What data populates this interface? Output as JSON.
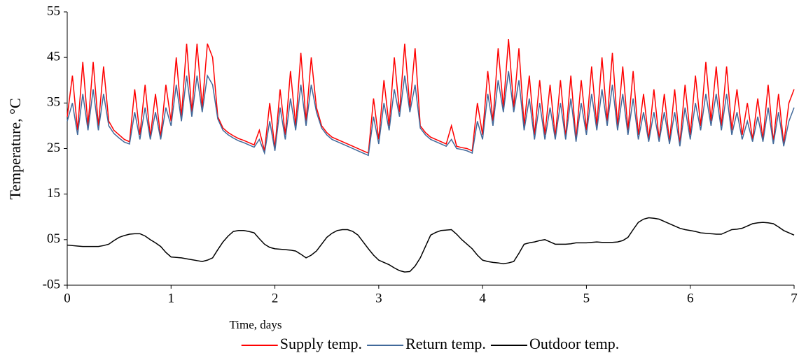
{
  "chart_data": {
    "type": "line",
    "xlabel": "Time, days",
    "ylabel": "Temperature, °C",
    "xlim": [
      0,
      7
    ],
    "xticks": [
      0,
      1,
      2,
      3,
      4,
      5,
      6,
      7
    ],
    "ylim": [
      -5,
      55
    ],
    "yticks": [
      {
        "value": -5,
        "label": "-05"
      },
      {
        "value": 5,
        "label": "05"
      },
      15,
      25,
      35,
      45,
      55
    ],
    "legend": "bottom",
    "x": [
      0,
      0.05,
      0.1,
      0.15,
      0.2,
      0.25,
      0.3,
      0.35,
      0.4,
      0.45,
      0.5,
      0.55,
      0.6,
      0.65,
      0.7,
      0.75,
      0.8,
      0.85,
      0.9,
      0.95,
      1,
      1.05,
      1.1,
      1.15,
      1.2,
      1.25,
      1.3,
      1.35,
      1.4,
      1.45,
      1.5,
      1.55,
      1.6,
      1.65,
      1.7,
      1.75,
      1.8,
      1.85,
      1.9,
      1.95,
      2,
      2.05,
      2.1,
      2.15,
      2.2,
      2.25,
      2.3,
      2.35,
      2.4,
      2.45,
      2.5,
      2.55,
      2.6,
      2.65,
      2.7,
      2.75,
      2.8,
      2.85,
      2.9,
      2.95,
      3,
      3.05,
      3.1,
      3.15,
      3.2,
      3.25,
      3.3,
      3.35,
      3.4,
      3.45,
      3.5,
      3.55,
      3.6,
      3.65,
      3.7,
      3.75,
      3.8,
      3.85,
      3.9,
      3.95,
      4,
      4.05,
      4.1,
      4.15,
      4.2,
      4.25,
      4.3,
      4.35,
      4.4,
      4.45,
      4.5,
      4.55,
      4.6,
      4.65,
      4.7,
      4.75,
      4.8,
      4.85,
      4.9,
      4.95,
      5,
      5.05,
      5.1,
      5.15,
      5.2,
      5.25,
      5.3,
      5.35,
      5.4,
      5.45,
      5.5,
      5.55,
      5.6,
      5.65,
      5.7,
      5.75,
      5.8,
      5.85,
      5.9,
      5.95,
      6,
      6.05,
      6.1,
      6.15,
      6.2,
      6.25,
      6.3,
      6.35,
      6.4,
      6.45,
      6.5,
      6.55,
      6.6,
      6.65,
      6.7,
      6.75,
      6.8,
      6.85,
      6.9,
      6.95,
      7
    ],
    "series": [
      {
        "name": "Supply temp.",
        "color": "#ff0000",
        "values": [
          32,
          41,
          29,
          44,
          30,
          44,
          30,
          43,
          31,
          29,
          28,
          27,
          26.5,
          38,
          28,
          39,
          27.5,
          37,
          27.5,
          39,
          31,
          45,
          32,
          48,
          33,
          48,
          34,
          48,
          45,
          32,
          29.5,
          28.5,
          27.8,
          27.2,
          26.8,
          26.3,
          25.8,
          29,
          24.5,
          35,
          25,
          38,
          28,
          42,
          30,
          46,
          31,
          45,
          34,
          30,
          28.5,
          27.5,
          27,
          26.5,
          26,
          25.5,
          25,
          24.5,
          24,
          36,
          27,
          40,
          30,
          45,
          33,
          48,
          34,
          47,
          30,
          28.5,
          27.5,
          27,
          26.5,
          26,
          30,
          25.5,
          25.2,
          25,
          24.5,
          35,
          28,
          42,
          31,
          47,
          34,
          49,
          34,
          47,
          30,
          41,
          28,
          40,
          28,
          39,
          27.5,
          40,
          27.5,
          41,
          27,
          40,
          29,
          43,
          30,
          45,
          31,
          46,
          30,
          43,
          29,
          42,
          28,
          37,
          27,
          38,
          27,
          37,
          26.5,
          38,
          26,
          39,
          28,
          41,
          30,
          44,
          31,
          43,
          30,
          43,
          29,
          38,
          28,
          35,
          27,
          36,
          27,
          39,
          26.5,
          37,
          26,
          35,
          38
        ]
      },
      {
        "name": "Return temp.",
        "color": "#41699a",
        "values": [
          31,
          35,
          28,
          37,
          29,
          38,
          29,
          37,
          30,
          28.3,
          27.3,
          26.4,
          26,
          33,
          27,
          34,
          27,
          33,
          27,
          34,
          30,
          39,
          31,
          41,
          32,
          41,
          33,
          41,
          39,
          31.5,
          29,
          28,
          27.3,
          26.7,
          26.3,
          25.8,
          25.3,
          27,
          24,
          31,
          24.5,
          34,
          27,
          36,
          29,
          39,
          30,
          39,
          33,
          29.5,
          28,
          27,
          26.5,
          26,
          25.5,
          25,
          24.5,
          24,
          23.5,
          32,
          26,
          35,
          29,
          38,
          32,
          41,
          33,
          39,
          29.5,
          28,
          27,
          26.5,
          26,
          25.5,
          27,
          25,
          24.8,
          24.5,
          24,
          31,
          27,
          37,
          30,
          40,
          33,
          42,
          33,
          40,
          29,
          36,
          27,
          35,
          27,
          34,
          27,
          35,
          27,
          36,
          26.5,
          35,
          28,
          37,
          29,
          38,
          30,
          39,
          29,
          37,
          28,
          36,
          27,
          33,
          26.5,
          33,
          26.5,
          33,
          26,
          33,
          25.5,
          34,
          27,
          35,
          29,
          37,
          30,
          37,
          29,
          37,
          28,
          33,
          27,
          31,
          26.5,
          32,
          26.5,
          34,
          26,
          33,
          25.5,
          31,
          34
        ]
      },
      {
        "name": "Outdoor temp.",
        "color": "#000000",
        "values": [
          3.8,
          3.7,
          3.6,
          3.5,
          3.5,
          3.5,
          3.5,
          3.7,
          4,
          4.8,
          5.5,
          5.9,
          6.2,
          6.3,
          6.3,
          5.8,
          5,
          4.3,
          3.5,
          2.2,
          1.2,
          1.1,
          1,
          0.8,
          0.6,
          0.4,
          0.2,
          0.5,
          1,
          2.8,
          4.5,
          5.8,
          6.8,
          7,
          7,
          6.8,
          6.5,
          5.2,
          4,
          3.3,
          3,
          2.9,
          2.8,
          2.7,
          2.5,
          1.8,
          1,
          1.6,
          2.5,
          4,
          5.5,
          6.4,
          7,
          7.2,
          7.2,
          6.8,
          6,
          4.5,
          3,
          1.6,
          0.5,
          0,
          -0.5,
          -1.2,
          -1.8,
          -2.1,
          -2,
          -0.8,
          1,
          3.5,
          6,
          6.6,
          7,
          7.1,
          7.2,
          6.2,
          5,
          4,
          3,
          1.6,
          0.5,
          0.2,
          0,
          -0.1,
          -0.3,
          -0.1,
          0.2,
          2,
          4,
          4.3,
          4.5,
          4.8,
          5,
          4.5,
          4,
          4,
          4,
          4.1,
          4.3,
          4.3,
          4.3,
          4.4,
          4.5,
          4.4,
          4.4,
          4.4,
          4.5,
          4.8,
          5.5,
          7.2,
          8.8,
          9.5,
          9.8,
          9.7,
          9.5,
          9,
          8.5,
          8,
          7.5,
          7.2,
          7,
          6.8,
          6.5,
          6.4,
          6.3,
          6.2,
          6.2,
          6.7,
          7.2,
          7.3,
          7.5,
          8,
          8.5,
          8.7,
          8.8,
          8.7,
          8.5,
          7.8,
          7,
          6.5,
          6
        ]
      }
    ]
  }
}
